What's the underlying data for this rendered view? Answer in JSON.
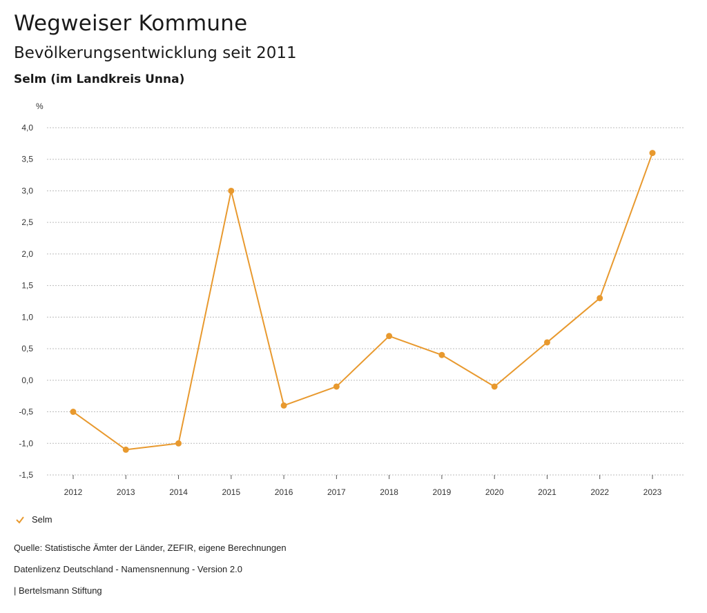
{
  "header": {
    "title": "Wegweiser Kommune",
    "subtitle": "Bevölkerungsentwicklung seit 2011",
    "region": "Selm (im Landkreis Unna)"
  },
  "colors": {
    "series": "#E8992E",
    "grid": "#bbbbbb"
  },
  "legend": {
    "icon": "check-icon",
    "label": "Selm"
  },
  "footer": {
    "source": "Quelle: Statistische Ämter der Länder, ZEFIR, eigene Berechnungen",
    "license": "Datenlizenz Deutschland - Namensnennung - Version 2.0",
    "brand": "| Bertelsmann Stiftung"
  },
  "chart_data": {
    "type": "line",
    "title": "Bevölkerungsentwicklung seit 2011",
    "ylabel": "%",
    "xlabel": "",
    "ylim": [
      -1.5,
      4.0
    ],
    "yticks": [
      "4,0",
      "3,5",
      "3,0",
      "2,5",
      "2,0",
      "1,5",
      "1,0",
      "0,5",
      "0,0",
      "-0,5",
      "-1,0",
      "-1,5"
    ],
    "ytick_values": [
      4.0,
      3.5,
      3.0,
      2.5,
      2.0,
      1.5,
      1.0,
      0.5,
      0.0,
      -0.5,
      -1.0,
      -1.5
    ],
    "grid": true,
    "categories": [
      "2012",
      "2013",
      "2014",
      "2015",
      "2016",
      "2017",
      "2018",
      "2019",
      "2020",
      "2021",
      "2022",
      "2023"
    ],
    "series": [
      {
        "name": "Selm",
        "values": [
          -0.5,
          -1.1,
          -1.0,
          3.0,
          -0.4,
          -0.1,
          0.7,
          0.4,
          -0.1,
          0.6,
          1.3,
          3.6
        ]
      }
    ]
  }
}
